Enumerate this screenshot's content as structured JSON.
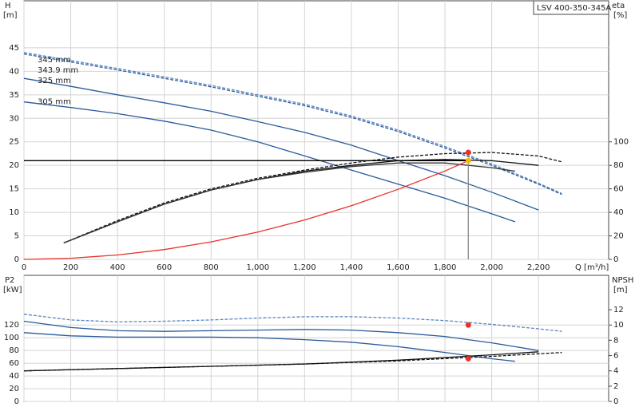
{
  "chart_data": [
    {
      "type": "line",
      "title": "LSV 400-350-345A",
      "y_label": "H",
      "y_unit": "[m]",
      "y2_label": "eta",
      "y2_unit": "[%]",
      "x_label": "Q [m³/h]",
      "xlim": [
        0,
        2500
      ],
      "ylim": [
        0,
        55
      ],
      "y2lim": [
        0,
        220
      ],
      "grid": true,
      "show_xtick_labels": true,
      "xticks": [
        0,
        200,
        400,
        600,
        800,
        {
          "value": 1000,
          "label": "1,000"
        },
        {
          "value": 1200,
          "label": "1,200"
        },
        {
          "value": 1400,
          "label": "1,400"
        },
        {
          "value": 1600,
          "label": "1,600"
        },
        {
          "value": 1800,
          "label": "1,800"
        },
        {
          "value": 2000,
          "label": "2,000"
        },
        {
          "value": 2200,
          "label": "2,200"
        }
      ],
      "yticks": [
        0,
        5,
        10,
        15,
        20,
        25,
        30,
        35,
        40,
        45
      ],
      "y2ticks": [
        0,
        20,
        40,
        60,
        80,
        100
      ],
      "series": [
        {
          "name": "345 mm",
          "color": "#5b86c0",
          "dash": true,
          "x": [
            0,
            200,
            400,
            600,
            800,
            1000,
            1200,
            1400,
            1600,
            1800,
            2000,
            2200,
            2300
          ],
          "values": [
            44,
            42.3,
            40.6,
            38.8,
            37,
            35,
            33,
            30.5,
            27.5,
            24,
            20.3,
            16.2,
            14
          ]
        },
        {
          "name": "343.9 mm",
          "color": "#2a5a9a",
          "dash": true,
          "x": [
            0,
            200,
            400,
            600,
            800,
            1000,
            1200,
            1400,
            1600,
            1800,
            2000,
            2200,
            2300
          ],
          "values": [
            43.7,
            42,
            40.3,
            38.5,
            36.7,
            34.7,
            32.7,
            30.2,
            27.2,
            23.7,
            20,
            16,
            13.8
          ]
        },
        {
          "name": "325 mm",
          "color": "#2a5a9a",
          "x": [
            0,
            200,
            400,
            600,
            800,
            1000,
            1200,
            1400,
            1600,
            1800,
            2000,
            2200
          ],
          "values": [
            38.5,
            36.8,
            35,
            33.3,
            31.5,
            29.3,
            27,
            24.3,
            21,
            17.8,
            14.3,
            10.5
          ]
        },
        {
          "name": "305 mm",
          "color": "#2a5a9a",
          "x": [
            0,
            200,
            400,
            600,
            800,
            1000,
            1200,
            1400,
            1600,
            1800,
            2000,
            2100
          ],
          "values": [
            33.5,
            32.3,
            31,
            29.4,
            27.5,
            25,
            22,
            19,
            16,
            13,
            9.7,
            8
          ]
        },
        {
          "color": "#111111",
          "dash": true,
          "axis": "y2",
          "x": [
            170,
            400,
            600,
            800,
            1000,
            1200,
            1400,
            1600,
            1800,
            2000,
            2200,
            2300
          ],
          "values": [
            14,
            33,
            48,
            60,
            69,
            76,
            82,
            87,
            90,
            91,
            88,
            83
          ]
        },
        {
          "color": "#111111",
          "axis": "y2",
          "x": [
            170,
            400,
            600,
            800,
            1000,
            1200,
            1400,
            1600,
            1800,
            2000,
            2200
          ],
          "values": [
            14,
            32,
            47,
            59,
            68,
            75,
            80,
            84,
            85,
            84,
            80
          ]
        },
        {
          "color": "#333333",
          "axis": "y2",
          "x": [
            170,
            400,
            600,
            800,
            1000,
            1200,
            1400,
            1600,
            1800,
            2000,
            2100
          ],
          "values": [
            14,
            32,
            47,
            59,
            68,
            74,
            79,
            82,
            82,
            78,
            75
          ]
        },
        {
          "color": "#e8312a",
          "x": [
            0,
            200,
            400,
            600,
            800,
            1000,
            1200,
            1400,
            1600,
            1800,
            1900
          ],
          "values": [
            0,
            0.23,
            0.93,
            2.09,
            3.72,
            5.82,
            8.38,
            11.4,
            14.9,
            18.8,
            21
          ]
        },
        {
          "color": "#000000",
          "x": [
            0,
            1900
          ],
          "values": [
            21,
            21
          ]
        },
        {
          "color": "#888888",
          "x": [
            1900,
            1900
          ],
          "values": [
            0,
            21
          ]
        },
        {
          "color": "#e8312a",
          "marker": true,
          "axis": "y2",
          "x": [
            1900
          ],
          "values": [
            91
          ]
        },
        {
          "color": "#f5b800",
          "marker": true,
          "x": [
            1900
          ],
          "values": [
            21
          ]
        }
      ]
    },
    {
      "type": "line",
      "y_label": "P2",
      "y_unit": "[kW]",
      "y2_label": "NPSH",
      "y2_unit": "[m]",
      "xlim": [
        0,
        2500
      ],
      "ylim": [
        0,
        198
      ],
      "y2lim": [
        0,
        16.5
      ],
      "grid": true,
      "show_xtick_labels": false,
      "xticks": [
        0,
        200,
        400,
        600,
        800,
        1000,
        1200,
        1400,
        1600,
        1800,
        2000,
        2200
      ],
      "yticks": [
        0,
        20,
        40,
        60,
        80,
        100,
        120
      ],
      "y2ticks": [
        0,
        2,
        4,
        6,
        8,
        10,
        12
      ],
      "series": [
        {
          "color": "#5b86c0",
          "dash": true,
          "x": [
            0,
            200,
            400,
            600,
            800,
            1000,
            1200,
            1400,
            1600,
            1800,
            2000,
            2200,
            2300
          ],
          "values": [
            137,
            128,
            125,
            126,
            128,
            131,
            133,
            133,
            131,
            127,
            121,
            114,
            110
          ]
        },
        {
          "color": "#2a5a9a",
          "x": [
            0,
            200,
            400,
            600,
            800,
            1000,
            1200,
            1400,
            1600,
            1800,
            2000,
            2200
          ],
          "values": [
            126,
            116,
            111,
            110,
            111,
            112,
            113,
            112,
            108,
            102,
            92,
            80
          ]
        },
        {
          "color": "#2a5a9a",
          "x": [
            0,
            200,
            400,
            600,
            800,
            1000,
            1200,
            1400,
            1600,
            1800,
            2000,
            2100
          ],
          "values": [
            108,
            103,
            101,
            101,
            101,
            100,
            97,
            93,
            86,
            77,
            67,
            63
          ]
        },
        {
          "color": "#111111",
          "dash": true,
          "axis": "y2",
          "x": [
            0,
            400,
            800,
            1200,
            1600,
            2000,
            2300
          ],
          "values": [
            4,
            4.3,
            4.6,
            4.9,
            5.3,
            5.9,
            6.4
          ]
        },
        {
          "color": "#111111",
          "axis": "y2",
          "x": [
            0,
            400,
            800,
            1200,
            1600,
            2000,
            2200
          ],
          "values": [
            4,
            4.3,
            4.6,
            4.9,
            5.4,
            6.1,
            6.5
          ]
        },
        {
          "color": "#e8312a",
          "marker": true,
          "x": [
            1900
          ],
          "values": [
            120
          ]
        },
        {
          "color": "#e8312a",
          "marker": true,
          "axis": "y2",
          "x": [
            1900
          ],
          "values": [
            5.6
          ]
        }
      ]
    }
  ]
}
